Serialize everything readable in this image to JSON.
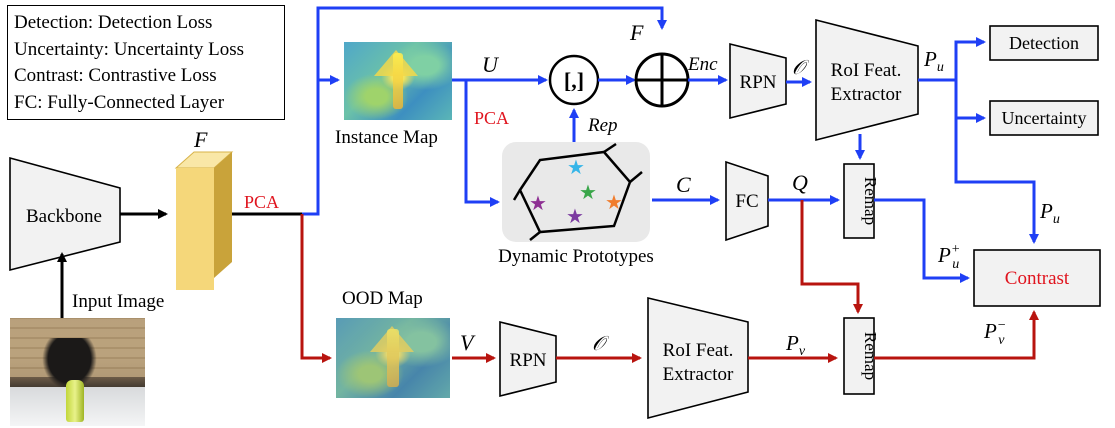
{
  "legend": {
    "lines": [
      "Detection: Detection Loss",
      "Uncertainty: Uncertainty Loss",
      "Contrast: Contrastive Loss",
      "FC: Fully-Connected Layer"
    ]
  },
  "blocks": {
    "backbone": "Backbone",
    "input_image": "Input Image",
    "instance_map": "Instance Map",
    "ood_map": "OOD Map",
    "dynamic_prototypes": "Dynamic Prototypes",
    "rpn_top": "RPN",
    "rpn_bottom": "RPN",
    "roi_top_line1": "RoI Feat.",
    "roi_top_line2": "Extractor",
    "roi_bottom_line1": "RoI Feat.",
    "roi_bottom_line2": "Extractor",
    "fc": "FC",
    "remap_top": "Remap",
    "remap_bottom": "Remap",
    "detection": "Detection",
    "uncertainty": "Uncertainty",
    "contrast": "Contrast",
    "concat": "[,]",
    "plus": "+"
  },
  "symbols": {
    "F_backbone": "F",
    "F_top": "F",
    "U": "U",
    "V": "V",
    "C": "C",
    "Q": "Q",
    "Enc": "Enc",
    "Rep": "Rep",
    "O_top": "𝒪",
    "O_bottom": "𝒪",
    "Pu": "P",
    "Pu_sub": "u",
    "Pu_right": "P",
    "Pu_right_sub": "u",
    "Pu_plus": "P",
    "Pu_plus_sub": "u",
    "Pu_plus_sup": "+",
    "Pv": "P",
    "Pv_sub": "v",
    "Pv_minus": "P",
    "Pv_minus_sub": "v",
    "Pv_minus_sup": "−"
  },
  "annotations": {
    "pca_main": "PCA",
    "pca_top": "PCA"
  },
  "colors": {
    "blue": "#1f3ff5",
    "red": "#b8140f",
    "box_fill": "#f2f2f2",
    "feature_fill": "#f5d77a",
    "proto_bg": "#e9e9e9",
    "star_colors": [
      "#35b5e8",
      "#3aa64a",
      "#8e3093",
      "#7b3ba0",
      "#f07d2e"
    ]
  }
}
